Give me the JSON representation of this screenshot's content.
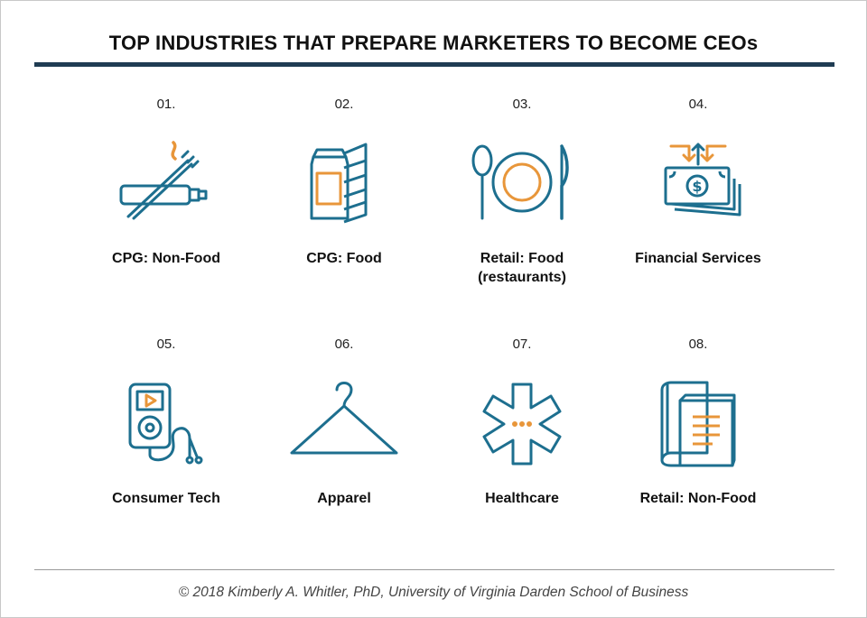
{
  "title": "TOP INDUSTRIES THAT PREPARE MARKETERS TO BECOME CEOs",
  "colors": {
    "navy": "#1f3c53",
    "blue": "#1d6f8f",
    "orange": "#e8963a"
  },
  "industries": [
    {
      "num": "01.",
      "label": "CPG: Non-Food",
      "icon": "toothbrush-icon"
    },
    {
      "num": "02.",
      "label": "CPG: Food",
      "icon": "food-cans-icon"
    },
    {
      "num": "03.",
      "label": "Retail: Food",
      "label2": "(restaurants)",
      "icon": "plate-cutlery-icon"
    },
    {
      "num": "04.",
      "label": "Financial Services",
      "icon": "money-stack-icon"
    },
    {
      "num": "05.",
      "label": "Consumer Tech",
      "icon": "music-player-icon"
    },
    {
      "num": "06.",
      "label": "Apparel",
      "icon": "hanger-icon"
    },
    {
      "num": "07.",
      "label": "Healthcare",
      "icon": "star-of-life-icon"
    },
    {
      "num": "08.",
      "label": "Retail: Non-Food",
      "icon": "books-icon"
    }
  ],
  "credit": "© 2018 Kimberly A. Whitler, PhD, University of Virginia Darden School of Business"
}
